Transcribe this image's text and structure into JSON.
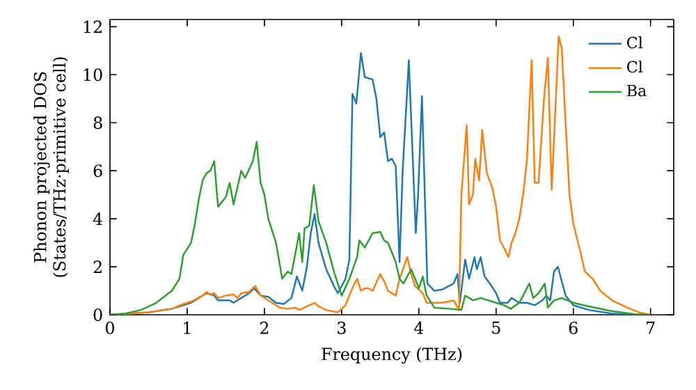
{
  "chart_data": {
    "type": "line",
    "xlabel": "Frequency (THz)",
    "ylabel": "Phonon projected DOS (States/THz·primitive cell)",
    "xlim": [
      0,
      7.3
    ],
    "ylim": [
      0,
      12.3
    ],
    "xticks": [
      0,
      1,
      2,
      3,
      4,
      5,
      6,
      7
    ],
    "yticks": [
      0,
      2,
      4,
      6,
      8,
      10,
      12
    ],
    "grid": false,
    "legend": "top right",
    "marker": "none",
    "line_style": "solid",
    "series": [
      {
        "name": "Cl",
        "color": "#1f77b4",
        "x": [
          0,
          0.5,
          0.8,
          0.95,
          1.05,
          1.15,
          1.25,
          1.35,
          1.4,
          1.55,
          1.6,
          1.7,
          1.8,
          1.87,
          1.95,
          2.05,
          2.15,
          2.25,
          2.35,
          2.42,
          2.49,
          2.55,
          2.6,
          2.65,
          2.7,
          2.8,
          2.9,
          2.95,
          3.05,
          3.1,
          3.14,
          3.19,
          3.25,
          3.3,
          3.4,
          3.45,
          3.5,
          3.55,
          3.6,
          3.65,
          3.7,
          3.75,
          3.79,
          3.87,
          3.96,
          3.99,
          4.04,
          4.11,
          4.2,
          4.3,
          4.45,
          4.5,
          4.53,
          4.6,
          4.65,
          4.72,
          4.75,
          4.8,
          4.85,
          4.92,
          5.0,
          5.05,
          5.15,
          5.2,
          5.3,
          5.4,
          5.5,
          5.6,
          5.65,
          5.7,
          5.75,
          5.8,
          5.85,
          5.9,
          6.0,
          6.2,
          6.5,
          6.8,
          7.0
        ],
        "values": [
          0,
          0.1,
          0.25,
          0.4,
          0.5,
          0.7,
          0.9,
          0.8,
          0.6,
          0.6,
          0.5,
          0.7,
          0.9,
          1.1,
          0.8,
          0.75,
          0.5,
          0.45,
          0.7,
          1.6,
          1.0,
          2.0,
          3.4,
          4.2,
          3.0,
          1.9,
          1.2,
          0.9,
          1.5,
          2.3,
          9.2,
          8.8,
          10.9,
          9.9,
          9.8,
          9.0,
          7.4,
          7.6,
          6.4,
          6.5,
          6.2,
          2.2,
          6.0,
          10.6,
          3.4,
          5.0,
          9.1,
          1.3,
          1.0,
          1.05,
          1.3,
          1.7,
          0.5,
          2.3,
          1.5,
          2.4,
          1.9,
          2.4,
          1.6,
          1.3,
          0.9,
          0.5,
          0.5,
          0.7,
          0.5,
          0.5,
          0.4,
          0.6,
          0.8,
          0.6,
          1.8,
          2.0,
          1.4,
          0.8,
          0.4,
          0.2,
          0.05,
          0,
          0
        ]
      },
      {
        "name": "Cl",
        "color": "#ff7f0e",
        "x": [
          0,
          0.5,
          0.8,
          0.95,
          1.05,
          1.2,
          1.25,
          1.3,
          1.35,
          1.4,
          1.5,
          1.6,
          1.65,
          1.7,
          1.8,
          1.88,
          1.95,
          2.05,
          2.2,
          2.3,
          2.4,
          2.45,
          2.55,
          2.65,
          2.7,
          2.8,
          2.95,
          3.05,
          3.15,
          3.2,
          3.25,
          3.3,
          3.35,
          3.4,
          3.5,
          3.55,
          3.6,
          3.7,
          3.75,
          3.85,
          3.9,
          3.95,
          4.05,
          4.1,
          4.3,
          4.45,
          4.52,
          4.55,
          4.62,
          4.65,
          4.7,
          4.73,
          4.78,
          4.82,
          4.88,
          4.95,
          5.0,
          5.05,
          5.1,
          5.16,
          5.2,
          5.25,
          5.3,
          5.35,
          5.4,
          5.46,
          5.5,
          5.55,
          5.62,
          5.67,
          5.72,
          5.81,
          5.85,
          5.9,
          5.95,
          6.0,
          6.1,
          6.15,
          6.25,
          6.35,
          6.5,
          6.7,
          6.85,
          7.0
        ],
        "values": [
          0,
          0.1,
          0.25,
          0.45,
          0.55,
          0.8,
          0.95,
          0.85,
          0.9,
          0.7,
          0.8,
          0.85,
          0.7,
          0.9,
          0.95,
          1.2,
          0.8,
          0.6,
          0.3,
          0.25,
          0.3,
          0.2,
          0.35,
          0.5,
          0.35,
          0.2,
          0.1,
          0.4,
          1.2,
          1.5,
          1.0,
          1.1,
          1.1,
          1.0,
          1.7,
          1.4,
          1.0,
          0.8,
          1.5,
          2.4,
          1.7,
          1.2,
          0.9,
          0.5,
          0.5,
          0.6,
          0.2,
          5.0,
          7.9,
          4.6,
          5.0,
          6.5,
          5.6,
          7.7,
          5.9,
          5.3,
          4.5,
          3.1,
          2.8,
          2.4,
          3.0,
          3.4,
          4.0,
          5.0,
          6.5,
          10.6,
          5.5,
          5.5,
          9.0,
          10.7,
          5.2,
          11.6,
          11.1,
          8.0,
          5.0,
          3.8,
          2.5,
          1.8,
          1.5,
          1.0,
          0.6,
          0.3,
          0.1,
          0
        ]
      },
      {
        "name": "Ba",
        "color": "#2ca02c",
        "x": [
          0,
          0.2,
          0.4,
          0.6,
          0.8,
          0.9,
          0.95,
          1.05,
          1.1,
          1.15,
          1.2,
          1.25,
          1.3,
          1.35,
          1.4,
          1.5,
          1.55,
          1.6,
          1.7,
          1.75,
          1.85,
          1.9,
          1.95,
          2.0,
          2.05,
          2.15,
          2.23,
          2.3,
          2.35,
          2.45,
          2.49,
          2.52,
          2.58,
          2.64,
          2.7,
          2.8,
          2.9,
          3.0,
          3.1,
          3.2,
          3.23,
          3.3,
          3.4,
          3.5,
          3.55,
          3.6,
          3.7,
          3.75,
          3.8,
          3.9,
          3.95,
          4.0,
          4.05,
          4.1,
          4.2,
          4.4,
          4.55,
          4.6,
          4.7,
          4.8,
          5.0,
          5.1,
          5.19,
          5.3,
          5.35,
          5.43,
          5.48,
          5.55,
          5.63,
          5.67,
          5.75,
          5.85,
          6.0,
          6.2,
          6.5,
          6.8,
          7.0
        ],
        "values": [
          0,
          0.05,
          0.2,
          0.5,
          1.0,
          1.5,
          2.5,
          3.0,
          3.8,
          4.8,
          5.6,
          5.9,
          6.0,
          6.4,
          4.5,
          4.9,
          5.5,
          4.6,
          6.0,
          5.7,
          6.4,
          7.2,
          5.5,
          5.0,
          4.0,
          3.0,
          1.5,
          1.8,
          1.7,
          3.4,
          2.2,
          3.6,
          3.7,
          5.4,
          3.9,
          3.0,
          1.8,
          0.8,
          1.5,
          2.4,
          3.1,
          2.8,
          3.4,
          3.45,
          3.1,
          3.0,
          2.2,
          1.5,
          1.3,
          1.9,
          1.5,
          1.1,
          1.6,
          0.8,
          0.3,
          0.25,
          0.2,
          0.8,
          0.6,
          0.7,
          0.5,
          0.4,
          0.25,
          0.5,
          0.8,
          1.3,
          0.7,
          0.9,
          1.3,
          0.3,
          0.6,
          0.7,
          0.5,
          0.35,
          0.15,
          0.02,
          0
        ]
      }
    ]
  }
}
